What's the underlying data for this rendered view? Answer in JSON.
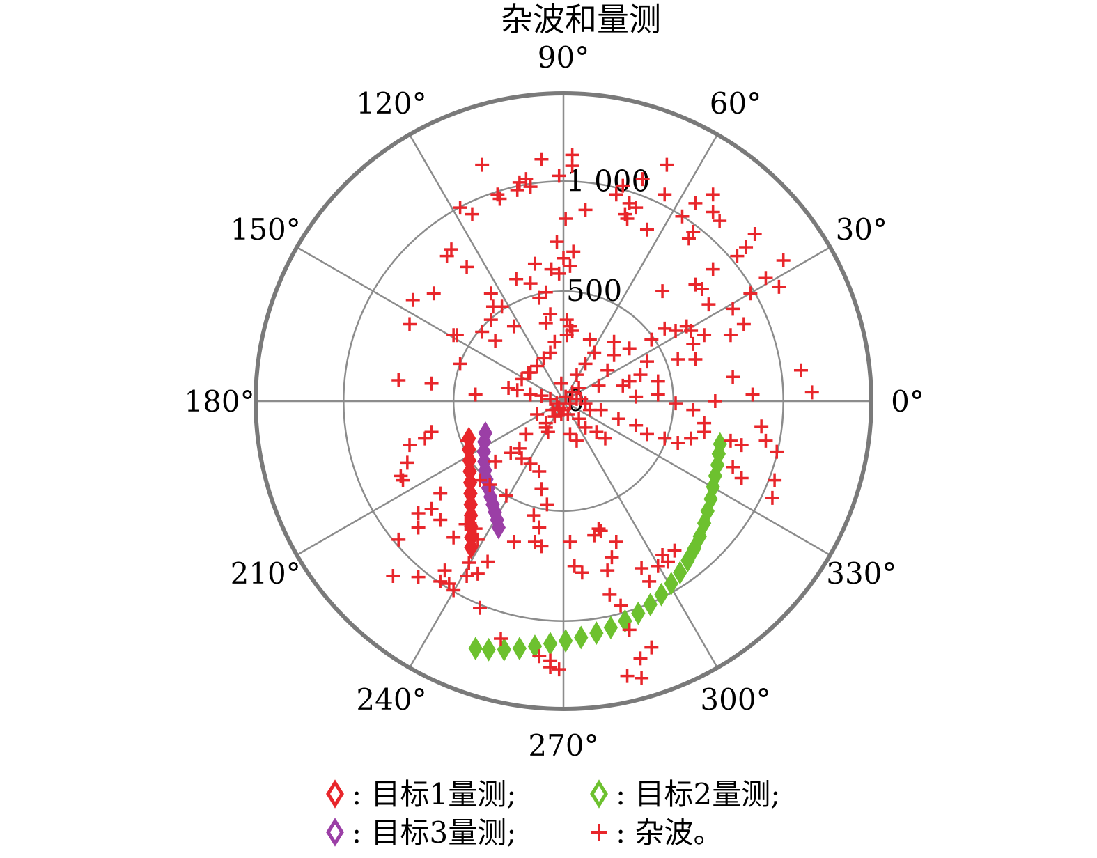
{
  "chart_data": {
    "type": "scatter",
    "coordinate_system": "polar",
    "title": "杂波和量测",
    "angular_ticks": [
      "0°",
      "30°",
      "60°",
      "90°",
      "120°",
      "150°",
      "180°",
      "210°",
      "240°",
      "270°",
      "300°",
      "330°"
    ],
    "radial_ticks": [
      {
        "value": 0,
        "label": "0"
      },
      {
        "value": 500,
        "label": "500"
      },
      {
        "value": 1000,
        "label": "1 000"
      }
    ],
    "rlim": [
      0,
      1400
    ],
    "grid": true,
    "legend_position": "bottom",
    "legend": [
      {
        "marker": "diamond",
        "color": "#e8262b",
        "label": ": 目标1量测;"
      },
      {
        "marker": "diamond",
        "color": "#6dc12f",
        "label": ": 目标2量测;"
      },
      {
        "marker": "diamond",
        "color": "#9b3fa6",
        "label": ": 目标3量测;"
      },
      {
        "marker": "plus",
        "color": "#e8262b",
        "label": ": 杂波。"
      }
    ],
    "colors": {
      "target1": "#e8262b",
      "target2": "#6dc12f",
      "target3": "#9b3fa6",
      "clutter": "#e8262b",
      "grid": "#8c8c8c",
      "outer_ring": "#7a7a7a"
    },
    "series": [
      {
        "key": "target1",
        "marker": "diamond",
        "points_xy": [
          [
            -430,
            -170
          ],
          [
            -430,
            -220
          ],
          [
            -428,
            -270
          ],
          [
            -426,
            -320
          ],
          [
            -424,
            -370
          ],
          [
            -423,
            -420
          ],
          [
            -422,
            -470
          ],
          [
            -421,
            -520
          ],
          [
            -420,
            -570
          ],
          [
            -420,
            -620
          ],
          [
            -420,
            -665
          ]
        ]
      },
      {
        "key": "target2",
        "marker": "diamond",
        "points_xy": [
          [
            -400,
            -1125
          ],
          [
            -340,
            -1130
          ],
          [
            -270,
            -1130
          ],
          [
            -200,
            -1125
          ],
          [
            -130,
            -1115
          ],
          [
            -60,
            -1103
          ],
          [
            10,
            -1090
          ],
          [
            80,
            -1075
          ],
          [
            150,
            -1055
          ],
          [
            215,
            -1030
          ],
          [
            280,
            -1000
          ],
          [
            340,
            -965
          ],
          [
            395,
            -925
          ],
          [
            445,
            -880
          ],
          [
            490,
            -830
          ],
          [
            530,
            -780
          ],
          [
            565,
            -725
          ],
          [
            595,
            -670
          ],
          [
            620,
            -615
          ],
          [
            640,
            -555
          ],
          [
            655,
            -500
          ],
          [
            670,
            -445
          ],
          [
            680,
            -390
          ],
          [
            690,
            -340
          ],
          [
            700,
            -290
          ],
          [
            706,
            -240
          ],
          [
            712,
            -195
          ]
        ]
      },
      {
        "key": "target3",
        "marker": "diamond",
        "points_xy": [
          [
            -355,
            -145
          ],
          [
            -360,
            -185
          ],
          [
            -362,
            -230
          ],
          [
            -360,
            -275
          ],
          [
            -356,
            -315
          ],
          [
            -350,
            -355
          ],
          [
            -342,
            -395
          ],
          [
            -332,
            -435
          ],
          [
            -322,
            -470
          ],
          [
            -312,
            -505
          ],
          [
            -302,
            -540
          ],
          [
            -295,
            -575
          ]
        ]
      },
      {
        "key": "clutter",
        "marker": "plus",
        "points_xy": [
          [
            40,
            1120
          ],
          [
            -100,
            1100
          ],
          [
            40,
            1070
          ],
          [
            -20,
            1025
          ],
          [
            -170,
            1010
          ],
          [
            -150,
            975
          ],
          [
            -300,
            940
          ],
          [
            -290,
            920
          ],
          [
            -210,
            960
          ],
          [
            -200,
            995
          ],
          [
            -370,
            1075
          ],
          [
            -470,
            880
          ],
          [
            -415,
            850
          ],
          [
            -510,
            690
          ],
          [
            -530,
            660
          ],
          [
            -440,
            610
          ],
          [
            -590,
            490
          ],
          [
            -685,
            460
          ],
          [
            -700,
            350
          ],
          [
            -750,
            95
          ],
          [
            -600,
            80
          ],
          [
            -400,
            30
          ],
          [
            -470,
            170
          ],
          [
            -500,
            300
          ],
          [
            -485,
            300
          ],
          [
            -215,
            555
          ],
          [
            -280,
            430
          ],
          [
            -330,
            370
          ],
          [
            -320,
            430
          ],
          [
            -330,
            490
          ],
          [
            -370,
            315
          ],
          [
            -310,
            275
          ],
          [
            -225,
            340
          ],
          [
            -130,
            625
          ],
          [
            -150,
            535
          ],
          [
            -110,
            470
          ],
          [
            -60,
            395
          ],
          [
            -80,
            355
          ],
          [
            -30,
            725
          ],
          [
            0,
            650
          ],
          [
            -80,
            495
          ],
          [
            -55,
            600
          ],
          [
            -20,
            580
          ],
          [
            30,
            615
          ],
          [
            45,
            680
          ],
          [
            10,
            830
          ],
          [
            15,
            370
          ],
          [
            40,
            320
          ],
          [
            30,
            340
          ],
          [
            15,
            300
          ],
          [
            -40,
            270
          ],
          [
            -60,
            220
          ],
          [
            -90,
            195
          ],
          [
            -120,
            160
          ],
          [
            -160,
            130
          ],
          [
            -190,
            100
          ],
          [
            -250,
            60
          ],
          [
            -210,
            50
          ],
          [
            -150,
            30
          ],
          [
            -100,
            25
          ],
          [
            -60,
            10
          ],
          [
            -30,
            -10
          ],
          [
            0,
            -40
          ],
          [
            20,
            -60
          ],
          [
            -40,
            -70
          ],
          [
            70,
            -80
          ],
          [
            100,
            -120
          ],
          [
            150,
            -140
          ],
          [
            190,
            -170
          ],
          [
            30,
            -150
          ],
          [
            60,
            -180
          ],
          [
            -80,
            -120
          ],
          [
            -170,
            -150
          ],
          [
            -200,
            -215
          ],
          [
            -190,
            -260
          ],
          [
            -240,
            -235
          ],
          [
            -310,
            -275
          ],
          [
            -150,
            -285
          ],
          [
            -110,
            -320
          ],
          [
            -100,
            -400
          ],
          [
            -75,
            -470
          ],
          [
            -135,
            -520
          ],
          [
            -110,
            -575
          ],
          [
            -130,
            -640
          ],
          [
            -225,
            -640
          ],
          [
            -100,
            -660
          ],
          [
            30,
            -640
          ],
          [
            50,
            -750
          ],
          [
            85,
            -780
          ],
          [
            200,
            -770
          ],
          [
            220,
            -710
          ],
          [
            240,
            -640
          ],
          [
            170,
            -590
          ],
          [
            160,
            -580
          ],
          [
            140,
            -610
          ],
          [
            210,
            -880
          ],
          [
            300,
            -1040
          ],
          [
            350,
            -1170
          ],
          [
            355,
            -1260
          ],
          [
            260,
            -930
          ],
          [
            290,
            -1250
          ],
          [
            355,
            -760
          ],
          [
            390,
            -820
          ],
          [
            430,
            -750
          ],
          [
            450,
            -700
          ],
          [
            475,
            -730
          ],
          [
            505,
            -680
          ],
          [
            400,
            -1120
          ],
          [
            -60,
            -1210
          ],
          [
            -20,
            -1220
          ],
          [
            -60,
            -1180
          ],
          [
            -110,
            -1160
          ],
          [
            -285,
            -1080
          ],
          [
            -380,
            -940
          ],
          [
            -500,
            -860
          ],
          [
            -520,
            -830
          ],
          [
            -660,
            -800
          ],
          [
            -750,
            -630
          ],
          [
            -775,
            -795
          ],
          [
            -430,
            -735
          ],
          [
            -345,
            -730
          ],
          [
            -390,
            -630
          ],
          [
            -380,
            -360
          ],
          [
            -260,
            -430
          ],
          [
            -335,
            -380
          ],
          [
            -560,
            -420
          ],
          [
            -600,
            -490
          ],
          [
            -660,
            -510
          ],
          [
            -660,
            -575
          ],
          [
            -560,
            -540
          ],
          [
            -500,
            -620
          ],
          [
            -540,
            -770
          ],
          [
            -445,
            -560
          ],
          [
            -400,
            -580
          ],
          [
            -440,
            -180
          ],
          [
            -600,
            -140
          ],
          [
            -630,
            -170
          ],
          [
            -700,
            -200
          ],
          [
            -710,
            -280
          ],
          [
            -740,
            -340
          ],
          [
            -730,
            -360
          ],
          [
            -560,
            -820
          ],
          [
            -440,
            -795
          ],
          [
            -390,
            -785
          ],
          [
            640,
            -140
          ],
          [
            810,
            -200
          ],
          [
            810,
            -350
          ],
          [
            760,
            -180
          ],
          [
            900,
            -115
          ],
          [
            920,
            -180
          ],
          [
            970,
            -230
          ],
          [
            960,
            -360
          ],
          [
            950,
            -440
          ],
          [
            770,
            -300
          ],
          [
            640,
            -100
          ],
          [
            580,
            -170
          ],
          [
            520,
            -190
          ],
          [
            460,
            -170
          ],
          [
            380,
            -150
          ],
          [
            330,
            -110
          ],
          [
            250,
            -80
          ],
          [
            170,
            -40
          ],
          [
            100,
            -10
          ],
          [
            80,
            10
          ],
          [
            160,
            70
          ],
          [
            270,
            70
          ],
          [
            330,
            20
          ],
          [
            200,
            140
          ],
          [
            350,
            120
          ],
          [
            230,
            210
          ],
          [
            300,
            240
          ],
          [
            400,
            280
          ],
          [
            460,
            330
          ],
          [
            600,
            190
          ],
          [
            590,
            260
          ],
          [
            640,
            300
          ],
          [
            760,
            300
          ],
          [
            820,
            350
          ],
          [
            770,
            420
          ],
          [
            850,
            490
          ],
          [
            920,
            560
          ],
          [
            980,
            520
          ],
          [
            1000,
            640
          ],
          [
            790,
            660
          ],
          [
            830,
            700
          ],
          [
            870,
            760
          ],
          [
            710,
            820
          ],
          [
            680,
            860
          ],
          [
            590,
            770
          ],
          [
            680,
            940
          ],
          [
            600,
            900
          ],
          [
            470,
            1075
          ],
          [
            360,
            1010
          ],
          [
            300,
            900
          ],
          [
            330,
            880
          ],
          [
            380,
            780
          ],
          [
            290,
            830
          ],
          [
            240,
            940
          ],
          [
            280,
            850
          ],
          [
            100,
            870
          ],
          [
            450,
            500
          ],
          [
            510,
            320
          ],
          [
            560,
            340
          ],
          [
            660,
            440
          ],
          [
            630,
            510
          ],
          [
            600,
            530
          ],
          [
            580,
            320
          ],
          [
            520,
            190
          ],
          [
            380,
            180
          ],
          [
            300,
            90
          ],
          [
            430,
            90
          ],
          [
            430,
            30
          ],
          [
            510,
            -10
          ],
          [
            590,
            -40
          ],
          [
            690,
            0
          ],
          [
            770,
            110
          ],
          [
            860,
            30
          ],
          [
            1080,
            140
          ],
          [
            1130,
            40
          ],
          [
            680,
            600
          ],
          [
            570,
            740
          ],
          [
            540,
            840
          ],
          [
            460,
            940
          ],
          [
            270,
            980
          ],
          [
            230,
            270
          ],
          [
            140,
            220
          ],
          [
            120,
            280
          ],
          [
            100,
            170
          ],
          [
            60,
            120
          ],
          [
            -10,
            80
          ],
          [
            10,
            20
          ],
          [
            40,
            40
          ],
          [
            70,
            60
          ],
          [
            -20,
            -30
          ],
          [
            -50,
            -40
          ],
          [
            -10,
            -60
          ],
          [
            60,
            10
          ],
          [
            30,
            -10
          ],
          [
            120,
            -40
          ],
          [
            -120,
            -60
          ],
          [
            -150,
            130
          ],
          [
            -70,
            -140
          ],
          [
            -80,
            -100
          ]
        ]
      }
    ]
  }
}
